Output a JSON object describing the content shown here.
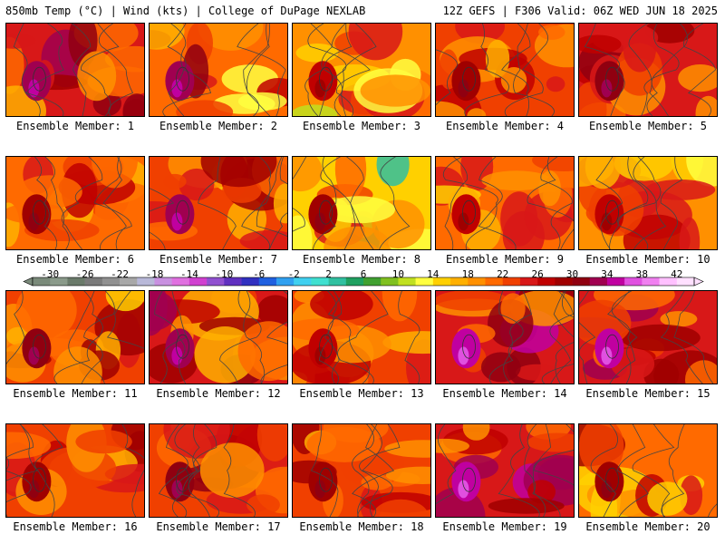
{
  "header": {
    "left": "850mb Temp (°C) | Wind (kts) | College of DuPage NEXLAB",
    "right": "12Z GEFS | F306 Valid: 06Z WED JUN 18 2025"
  },
  "member_prefix": "Ensemble Member: ",
  "members": [
    {
      "label": "Ensemble Member: 1",
      "mean_temp_c": 24,
      "max_temp_c": 34
    },
    {
      "label": "Ensemble Member: 2",
      "mean_temp_c": 21,
      "max_temp_c": 34
    },
    {
      "label": "Ensemble Member: 3",
      "mean_temp_c": 18,
      "max_temp_c": 28
    },
    {
      "label": "Ensemble Member: 4",
      "mean_temp_c": 22,
      "max_temp_c": 30
    },
    {
      "label": "Ensemble Member: 5",
      "mean_temp_c": 24,
      "max_temp_c": 32
    },
    {
      "label": "Ensemble Member: 6",
      "mean_temp_c": 21,
      "max_temp_c": 30
    },
    {
      "label": "Ensemble Member: 7",
      "mean_temp_c": 22,
      "max_temp_c": 34
    },
    {
      "label": "Ensemble Member: 8",
      "mean_temp_c": 14,
      "max_temp_c": 30
    },
    {
      "label": "Ensemble Member: 9",
      "mean_temp_c": 20,
      "max_temp_c": 28
    },
    {
      "label": "Ensemble Member: 10",
      "mean_temp_c": 19,
      "max_temp_c": 28
    },
    {
      "label": "Ensemble Member: 11",
      "mean_temp_c": 22,
      "max_temp_c": 32
    },
    {
      "label": "Ensemble Member: 12",
      "mean_temp_c": 24,
      "max_temp_c": 34
    },
    {
      "label": "Ensemble Member: 13",
      "mean_temp_c": 22,
      "max_temp_c": 28
    },
    {
      "label": "Ensemble Member: 14",
      "mean_temp_c": 25,
      "max_temp_c": 36
    },
    {
      "label": "Ensemble Member: 15",
      "mean_temp_c": 25,
      "max_temp_c": 36
    },
    {
      "label": "Ensemble Member: 16",
      "mean_temp_c": 22,
      "max_temp_c": 30
    },
    {
      "label": "Ensemble Member: 17",
      "mean_temp_c": 23,
      "max_temp_c": 32
    },
    {
      "label": "Ensemble Member: 18",
      "mean_temp_c": 22,
      "max_temp_c": 30
    },
    {
      "label": "Ensemble Member: 19",
      "mean_temp_c": 25,
      "max_temp_c": 36
    },
    {
      "label": "Ensemble Member: 20",
      "mean_temp_c": 21,
      "max_temp_c": 30
    }
  ],
  "colorbar": {
    "unit": "°C",
    "step_c": 2,
    "range_c": [
      -32,
      44
    ],
    "tick_labels": [
      "-30",
      "-26",
      "-22",
      "-18",
      "-14",
      "-10",
      "-6",
      "-2",
      "2",
      "6",
      "10",
      "14",
      "18",
      "22",
      "26",
      "30",
      "34",
      "38",
      "42"
    ],
    "colors": [
      "#7a8a7a",
      "#8a9a8a",
      "#6a7a6a",
      "#7a7a7a",
      "#909090",
      "#a8a8a8",
      "#b8b8d8",
      "#c890e0",
      "#e070e0",
      "#d040d0",
      "#9050d0",
      "#6030c0",
      "#3030c0",
      "#2060e0",
      "#30a0f0",
      "#40d0f0",
      "#40e0d0",
      "#30c0a0",
      "#20a060",
      "#40a030",
      "#80c020",
      "#c0e020",
      "#ffff40",
      "#ffd000",
      "#ffb000",
      "#ff9000",
      "#ff6a00",
      "#f04000",
      "#d81818",
      "#c00000",
      "#a00000",
      "#900010",
      "#a00050",
      "#c000a0",
      "#e050e0",
      "#f080f0",
      "#ffc0ff",
      "#ffe0ff"
    ]
  }
}
